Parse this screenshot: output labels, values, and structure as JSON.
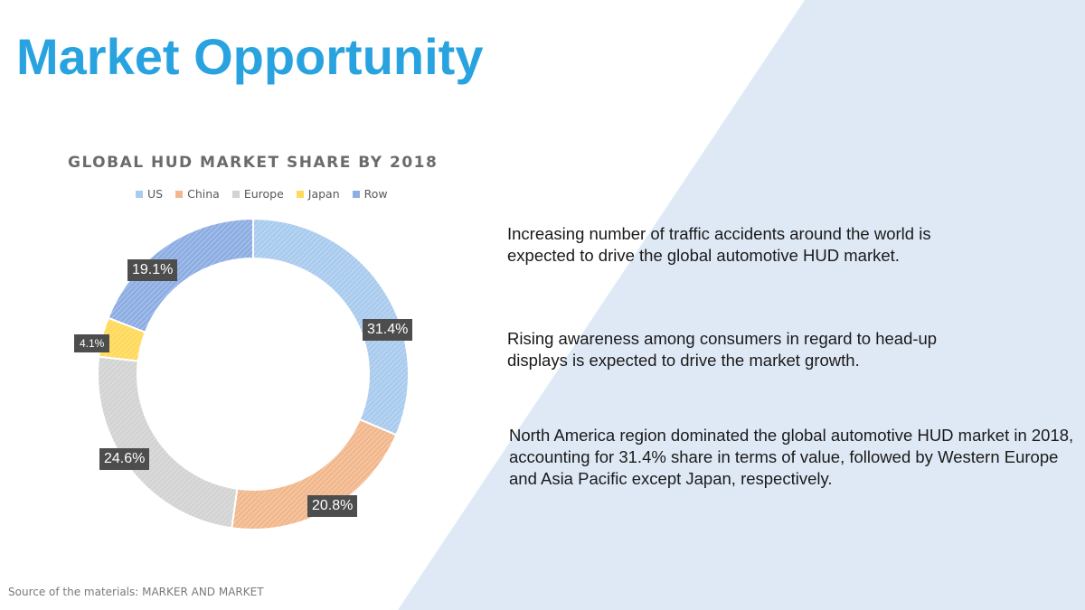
{
  "slide": {
    "title": "Market Opportunity",
    "source": "Source of the materials: MARKER AND MARKET",
    "paragraphs": [
      "Increasing number of traffic accidents around the world is expected to drive the global automotive HUD market.",
      "Rising awareness among consumers in regard to head-up displays is expected to drive the market growth.",
      "North America region dominated the global automotive HUD market in 2018, accounting for 31.4% share in terms of value, followed by Western Europe and Asia Pacific except Japan, respectively."
    ],
    "background_accent": "#dfe9f6",
    "title_color": "#29a3e0"
  },
  "chart_data": {
    "type": "pie",
    "subtype": "donut",
    "title": "GLOBAL HUD MARKET SHARE BY 2018",
    "legend_position": "top",
    "categories": [
      "US",
      "China",
      "Europe",
      "Japan",
      "Row"
    ],
    "values": [
      31.4,
      20.8,
      24.6,
      4.1,
      19.1
    ],
    "labels": [
      "31.4%",
      "20.8%",
      "24.6%",
      "4.1%",
      "19.1%"
    ],
    "colors": [
      "#a9cbee",
      "#f2b88d",
      "#d3d3d3",
      "#ffd95a",
      "#8eaee3"
    ]
  }
}
